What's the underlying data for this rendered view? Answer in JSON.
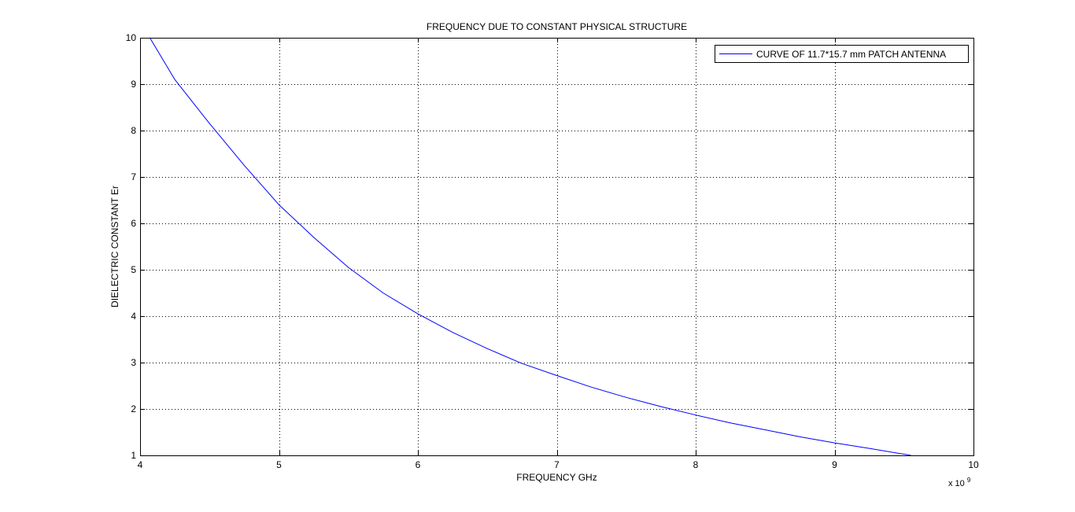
{
  "chart_data": {
    "type": "line",
    "title": "FREQUENCY DUE TO CONSTANT PHYSICAL STRUCTURE",
    "xlabel": "FREQUENCY GHz",
    "ylabel": "DIELECTRIC CONSTANT Er",
    "x_exponent_base": "x 10",
    "x_exponent_power": "9",
    "xlim": [
      4,
      10
    ],
    "ylim": [
      1,
      10
    ],
    "x_ticks": [
      "4",
      "5",
      "6",
      "7",
      "8",
      "9",
      "10"
    ],
    "y_ticks": [
      "1",
      "2",
      "3",
      "4",
      "5",
      "6",
      "7",
      "8",
      "9",
      "10"
    ],
    "grid": true,
    "legend_position": "top-right",
    "series": [
      {
        "name": "CURVE OF 11.7*15.7 mm PATCH ANTENNA",
        "color": "#0000ff",
        "x": [
          4.07,
          4.25,
          4.5,
          4.75,
          5.0,
          5.25,
          5.5,
          5.75,
          6.0,
          6.25,
          6.5,
          6.75,
          7.0,
          7.25,
          7.5,
          7.75,
          8.0,
          8.25,
          8.5,
          8.75,
          9.0,
          9.25,
          9.55
        ],
        "y": [
          10.0,
          9.1,
          8.15,
          7.25,
          6.4,
          5.7,
          5.05,
          4.5,
          4.05,
          3.65,
          3.3,
          2.98,
          2.72,
          2.47,
          2.25,
          2.05,
          1.87,
          1.7,
          1.55,
          1.4,
          1.27,
          1.15,
          1.0
        ]
      }
    ]
  }
}
